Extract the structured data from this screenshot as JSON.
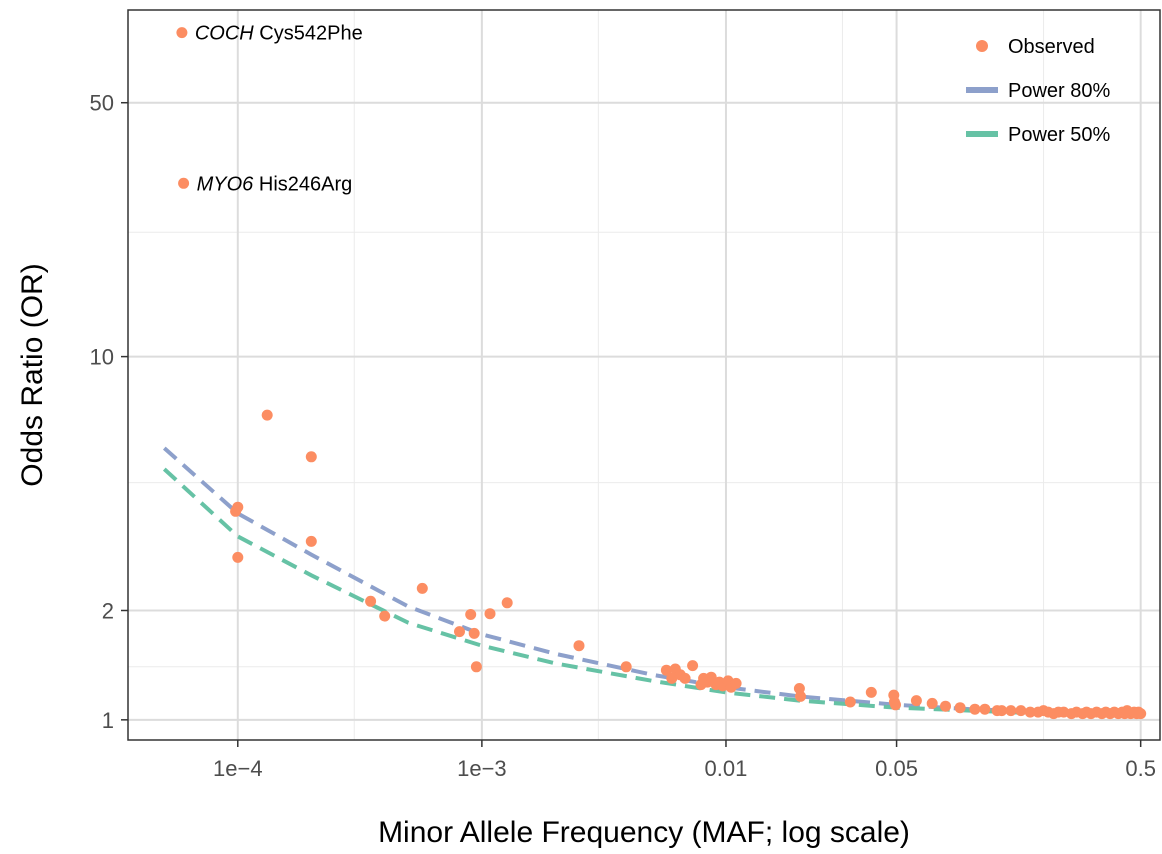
{
  "chart_data": {
    "type": "scatter",
    "xlabel": "Minor Allele Frequency (MAF; log scale)",
    "ylabel": "Odds Ratio (OR)",
    "x_scale": "log",
    "y_scale": "log",
    "xlim": [
      3.55e-05,
      0.6
    ],
    "ylim": [
      0.88,
      90
    ],
    "x_ticks": [
      {
        "value": 0.0001,
        "label": "1e−4"
      },
      {
        "value": 0.001,
        "label": "1e−3"
      },
      {
        "value": 0.01,
        "label": "0.01"
      },
      {
        "value": 0.05,
        "label": "0.05"
      },
      {
        "value": 0.5,
        "label": "0.5"
      }
    ],
    "x_minor": [
      0.0003,
      0.003,
      0.03,
      0.2
    ],
    "y_ticks": [
      {
        "value": 1,
        "label": "1"
      },
      {
        "value": 2,
        "label": "2"
      },
      {
        "value": 10,
        "label": "10"
      },
      {
        "value": 50,
        "label": "50"
      }
    ],
    "y_minor": [
      1.4,
      4.5,
      22,
      95
    ],
    "grid": true,
    "legend_position": "top-right",
    "colors": {
      "observed": "#FC8D62",
      "power80": "#8DA0CB",
      "power50": "#66C2A5"
    },
    "legend": [
      {
        "label": "Observed",
        "key": "observed",
        "shape": "point"
      },
      {
        "label": "Power 80%",
        "key": "power80",
        "shape": "line"
      },
      {
        "label": "Power 50%",
        "key": "power50",
        "shape": "line"
      }
    ],
    "annotations": [
      {
        "gene": "COCH",
        "variant": "Cys542Phe",
        "x": 5.9e-05,
        "y": 78
      },
      {
        "gene": "MYO6",
        "variant": "His246Arg",
        "x": 6e-05,
        "y": 30
      }
    ],
    "series": [
      {
        "name": "Power 80%",
        "type": "line",
        "points": [
          [
            5e-05,
            5.6
          ],
          [
            0.0001,
            3.7
          ],
          [
            0.0002,
            2.85
          ],
          [
            0.0005,
            2.05
          ],
          [
            0.001,
            1.72
          ],
          [
            0.002,
            1.52
          ],
          [
            0.005,
            1.33
          ],
          [
            0.01,
            1.23
          ],
          [
            0.02,
            1.16
          ],
          [
            0.05,
            1.1
          ],
          [
            0.1,
            1.07
          ],
          [
            0.2,
            1.05
          ],
          [
            0.5,
            1.035
          ]
        ]
      },
      {
        "name": "Power 50%",
        "type": "line",
        "points": [
          [
            5e-05,
            4.9
          ],
          [
            0.0001,
            3.2
          ],
          [
            0.0002,
            2.5
          ],
          [
            0.0005,
            1.85
          ],
          [
            0.001,
            1.6
          ],
          [
            0.002,
            1.43
          ],
          [
            0.005,
            1.28
          ],
          [
            0.01,
            1.19
          ],
          [
            0.02,
            1.13
          ],
          [
            0.05,
            1.08
          ],
          [
            0.1,
            1.06
          ],
          [
            0.2,
            1.04
          ],
          [
            0.5,
            1.03
          ]
        ]
      },
      {
        "name": "Observed",
        "type": "scatter",
        "points": [
          [
            5.9e-05,
            78
          ],
          [
            6e-05,
            30
          ],
          [
            9.8e-05,
            3.75
          ],
          [
            0.0001,
            3.85
          ],
          [
            0.0001,
            2.8
          ],
          [
            0.000132,
            6.9
          ],
          [
            0.0002,
            5.3
          ],
          [
            0.0002,
            3.1
          ],
          [
            0.00035,
            2.12
          ],
          [
            0.0004,
            1.93
          ],
          [
            0.00057,
            2.3
          ],
          [
            0.00081,
            1.75
          ],
          [
            0.0009,
            1.95
          ],
          [
            0.00093,
            1.73
          ],
          [
            0.00095,
            1.4
          ],
          [
            0.00108,
            1.96
          ],
          [
            0.00127,
            2.1
          ],
          [
            0.0025,
            1.6
          ],
          [
            0.0039,
            1.4
          ],
          [
            0.0057,
            1.37
          ],
          [
            0.006,
            1.3
          ],
          [
            0.0062,
            1.38
          ],
          [
            0.0065,
            1.33
          ],
          [
            0.0068,
            1.3
          ],
          [
            0.0073,
            1.41
          ],
          [
            0.0079,
            1.25
          ],
          [
            0.0081,
            1.3
          ],
          [
            0.0084,
            1.27
          ],
          [
            0.0087,
            1.31
          ],
          [
            0.0091,
            1.25
          ],
          [
            0.0094,
            1.27
          ],
          [
            0.0097,
            1.24
          ],
          [
            0.0102,
            1.28
          ],
          [
            0.0105,
            1.23
          ],
          [
            0.011,
            1.26
          ],
          [
            0.02,
            1.22
          ],
          [
            0.0202,
            1.16
          ],
          [
            0.0323,
            1.12
          ],
          [
            0.0394,
            1.19
          ],
          [
            0.0487,
            1.17
          ],
          [
            0.049,
            1.12
          ],
          [
            0.0495,
            1.1
          ],
          [
            0.0603,
            1.13
          ],
          [
            0.07,
            1.11
          ],
          [
            0.0793,
            1.09
          ],
          [
            0.091,
            1.08
          ],
          [
            0.1047,
            1.07
          ],
          [
            0.115,
            1.07
          ],
          [
            0.129,
            1.06
          ],
          [
            0.1348,
            1.06
          ],
          [
            0.147,
            1.06
          ],
          [
            0.1615,
            1.06
          ],
          [
            0.1763,
            1.05
          ],
          [
            0.19,
            1.05
          ],
          [
            0.2,
            1.06
          ],
          [
            0.209,
            1.05
          ],
          [
            0.22,
            1.04
          ],
          [
            0.23,
            1.05
          ],
          [
            0.2418,
            1.05
          ],
          [
            0.26,
            1.04
          ],
          [
            0.273,
            1.05
          ],
          [
            0.289,
            1.04
          ],
          [
            0.3,
            1.05
          ],
          [
            0.313,
            1.04
          ],
          [
            0.33,
            1.05
          ],
          [
            0.347,
            1.04
          ],
          [
            0.36,
            1.05
          ],
          [
            0.3751,
            1.04
          ],
          [
            0.39,
            1.05
          ],
          [
            0.405,
            1.04
          ],
          [
            0.42,
            1.05
          ],
          [
            0.4301,
            1.04
          ],
          [
            0.44,
            1.06
          ],
          [
            0.455,
            1.04
          ],
          [
            0.47,
            1.05
          ],
          [
            0.4818,
            1.04
          ],
          [
            0.49,
            1.05
          ],
          [
            0.5,
            1.04
          ]
        ]
      }
    ]
  }
}
